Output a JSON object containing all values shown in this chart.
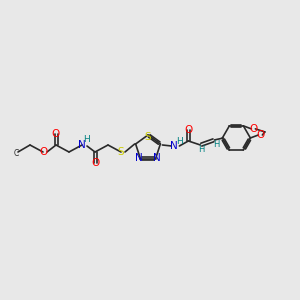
{
  "bg_color": "#e8e8e8",
  "bond_color": "#2a2a2a",
  "colors": {
    "O": "#ff0000",
    "N": "#0000cd",
    "S": "#cccc00",
    "H": "#008080",
    "C": "#2a2a2a"
  },
  "fig_width": 3.0,
  "fig_height": 3.0,
  "dpi": 100
}
